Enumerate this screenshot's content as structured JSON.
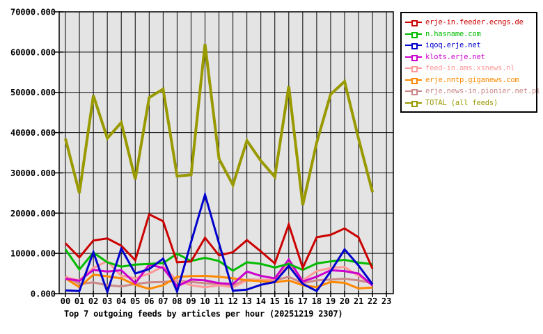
{
  "chart_data": {
    "type": "line",
    "title": "Top 7 outgoing feeds by articles per hour (20251219 2307)",
    "x_tick_labels": [
      "00",
      "01",
      "02",
      "03",
      "04",
      "05",
      "06",
      "07",
      "08",
      "09",
      "10",
      "11",
      "12",
      "13",
      "14",
      "15",
      "16",
      "17",
      "18",
      "19",
      "20",
      "21",
      "22",
      "23"
    ],
    "y_tick_labels": [
      "0.000",
      "10000.000",
      "20000.000",
      "30000.000",
      "40000.000",
      "50000.000",
      "60000.000",
      "70000.000"
    ],
    "ylim": [
      0,
      70000
    ],
    "y_step": 10000,
    "grid": true,
    "legend_position": "right",
    "plot_bg_color": "#e4e4e4",
    "series": [
      {
        "name": "erje-in.feeder.ecngs.de",
        "color": "#cc0000",
        "values": [
          12500,
          9000,
          13200,
          13700,
          11900,
          8300,
          19700,
          18000,
          7800,
          8000,
          13900,
          9500,
          10300,
          13300,
          10500,
          7500,
          17200,
          6400,
          14000,
          14600,
          16200,
          14000,
          6200
        ]
      },
      {
        "name": "n.hasname.com",
        "color": "#00bb00",
        "values": [
          11000,
          6000,
          10200,
          7800,
          6700,
          7200,
          7400,
          7600,
          9900,
          8100,
          8900,
          8100,
          5700,
          7800,
          7400,
          6500,
          7400,
          5900,
          7500,
          8000,
          8400,
          7700,
          7300
        ]
      },
      {
        "name": "iqoq.erje.net",
        "color": "#0000cc",
        "values": [
          800,
          650,
          10300,
          400,
          11200,
          5000,
          6100,
          8700,
          500,
          12800,
          24600,
          12500,
          700,
          1000,
          2200,
          2900,
          6900,
          2400,
          650,
          5500,
          11000,
          7000,
          2300
        ]
      },
      {
        "name": "klots.erje.net",
        "color": "#cc00cc",
        "values": [
          3700,
          3200,
          5900,
          5500,
          5800,
          2600,
          7200,
          6400,
          1800,
          3500,
          3300,
          2600,
          2400,
          5500,
          4400,
          3800,
          8500,
          3000,
          4200,
          5800,
          5600,
          5000,
          2000
        ]
      },
      {
        "name": "feed-in.ams.xsnews.nl",
        "color": "#ff9999",
        "values": [
          4100,
          3300,
          6400,
          8100,
          4400,
          3800,
          5000,
          6700,
          3250,
          2100,
          1600,
          2100,
          1600,
          3300,
          3400,
          3500,
          7500,
          3300,
          5600,
          6400,
          6600,
          4400,
          2500
        ]
      },
      {
        "name": "erje.nntp.giganews.com",
        "color": "#ff8800",
        "values": [
          3800,
          1600,
          4700,
          4300,
          3800,
          2200,
          1200,
          2100,
          4150,
          4350,
          4400,
          4200,
          3800,
          3300,
          3100,
          2800,
          3300,
          2100,
          1600,
          2900,
          2700,
          1300,
          1500
        ]
      },
      {
        "name": "erje.news-in.pionier.net.pl",
        "color": "#cc8888",
        "values": [
          4300,
          2400,
          2800,
          2100,
          1800,
          2400,
          2800,
          2900,
          3200,
          2900,
          2600,
          2400,
          2100,
          3500,
          3400,
          3300,
          4200,
          2600,
          3300,
          3500,
          3700,
          3300,
          2600
        ]
      },
      {
        "name": "TOTAL (all feeds)",
        "color": "#999900",
        "values": [
          38500,
          25000,
          49200,
          38600,
          42500,
          28400,
          48700,
          50800,
          29200,
          29500,
          62000,
          33500,
          27000,
          38000,
          33000,
          29000,
          51500,
          22000,
          37500,
          49500,
          52700,
          38500,
          25200
        ]
      }
    ]
  }
}
